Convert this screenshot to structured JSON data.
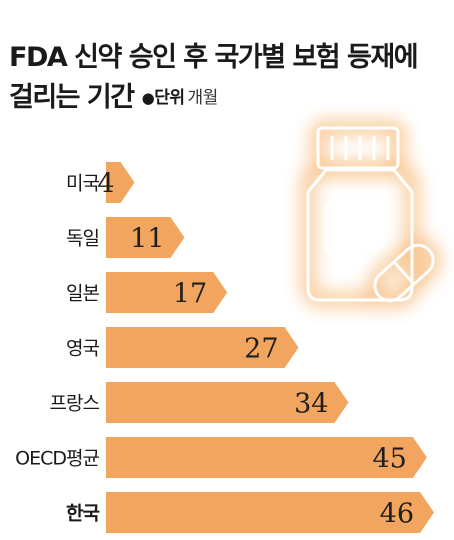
{
  "title_line1": "FDA 신약 승인 후 국가별 보험 등재에",
  "title_line2": "걸리는 기간",
  "unit_bullet": "●",
  "unit_label": "단위",
  "unit_value": "개월",
  "colors": {
    "bar": "#f2a55f",
    "bar_text": "#1f1f1f",
    "glow": "#f6b26b",
    "icon_line": "#ffffff"
  },
  "icon": "pill-bottle-icon",
  "chart_data": {
    "type": "bar",
    "orientation": "horizontal",
    "title": "FDA 신약 승인 후 국가별 보험 등재에 걸리는 기간",
    "unit": "개월",
    "categories": [
      "미국",
      "독일",
      "일본",
      "영국",
      "프랑스",
      "OECD평균",
      "한국"
    ],
    "values": [
      4,
      11,
      17,
      27,
      34,
      45,
      46
    ],
    "highlight": "한국",
    "xlim": [
      0,
      46
    ],
    "grid": false,
    "legend": "none"
  }
}
